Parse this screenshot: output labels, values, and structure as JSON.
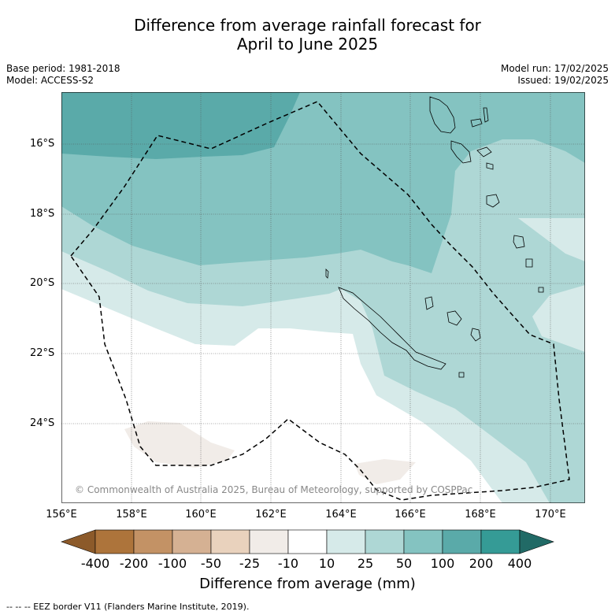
{
  "title": {
    "line1": "Difference from average rainfall forecast for",
    "line2": "April to June 2025"
  },
  "meta": {
    "base_period": "Base period: 1981-2018",
    "model": "Model: ACCESS-S2",
    "model_run": "Model run: 17/02/2025",
    "issued": "Issued: 19/02/2025"
  },
  "axes": {
    "lat_labels": [
      "16°S",
      "18°S",
      "20°S",
      "22°S",
      "24°S"
    ],
    "lon_labels": [
      "156°E",
      "158°E",
      "160°E",
      "162°E",
      "164°E",
      "166°E",
      "168°E",
      "170°E"
    ]
  },
  "colorbar": {
    "title": "Difference from average (mm)",
    "ticks": [
      "-400",
      "-200",
      "-100",
      "-50",
      "-25",
      "-10",
      "10",
      "25",
      "50",
      "100",
      "200",
      "400"
    ],
    "colors": [
      "#8c5a2a",
      "#ad743b",
      "#c39265",
      "#d5b193",
      "#e9d2bd",
      "#f1ece8",
      "#ffffff",
      "#d6eae9",
      "#aed7d5",
      "#84c3c1",
      "#5aaaa9",
      "#359b96",
      "#216a66"
    ]
  },
  "copyright": "© Commonwealth of Australia 2025, Bureau of Meteorology, supported by COSPPac",
  "footer": "--  --  -- EEZ border V11 (Flanders Marine Institute, 2019)."
}
